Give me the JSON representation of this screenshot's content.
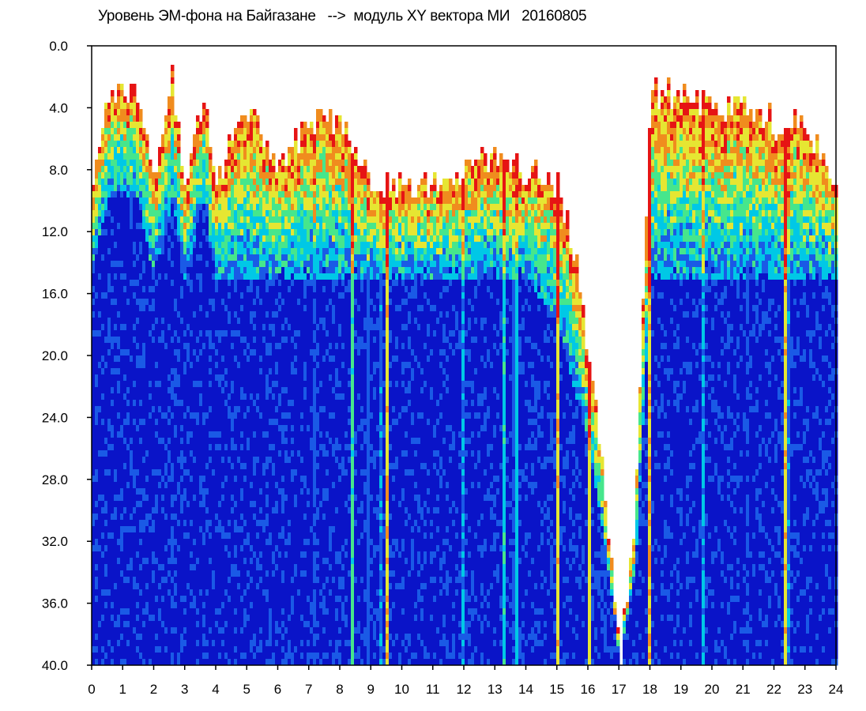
{
  "chart_data": {
    "type": "heatmap",
    "title": "Уровень ЭМ-фона на Байгазане   -->  модуль XY вектора МИ   20160805",
    "x_ticks": [
      "0",
      "1",
      "2",
      "3",
      "4",
      "5",
      "6",
      "7",
      "8",
      "9",
      "10",
      "11",
      "12",
      "13",
      "14",
      "15",
      "16",
      "17",
      "18",
      "19",
      "20",
      "21",
      "22",
      "23",
      "24"
    ],
    "y_ticks": [
      "0.0",
      "4.0",
      "8.0",
      "12.0",
      "16.0",
      "20.0",
      "24.0",
      "28.0",
      "32.0",
      "36.0",
      "40.0"
    ],
    "xlim": [
      0,
      24
    ],
    "ylim": [
      0,
      40
    ],
    "y_inverted": true,
    "grid": false,
    "colormap": [
      "#0a14c8",
      "#1a5ae6",
      "#00c8e6",
      "#46e68c",
      "#e6e632",
      "#f08c1e",
      "#e61414"
    ],
    "background_color": "#ffffff",
    "activity_profile": {
      "hours": [
        0,
        0.5,
        1.5,
        2.0,
        2.6,
        3.0,
        3.6,
        4.0,
        5.0,
        6.0,
        7.0,
        8.0,
        9.0,
        10.0,
        11.0,
        12.0,
        13.0,
        14.0,
        15.0,
        15.5,
        16.0,
        16.5,
        17.0,
        17.5,
        18.0,
        19.0,
        20.0,
        21.0,
        22.0,
        23.0,
        24.0
      ],
      "upper_edge": [
        9,
        3,
        3,
        9,
        2,
        9,
        3,
        9,
        4,
        8,
        5,
        5,
        9,
        9,
        9,
        8,
        7,
        8,
        9,
        13,
        20,
        28,
        40,
        30,
        3,
        3,
        4,
        4,
        5,
        5,
        9
      ],
      "floor_level": [
        15,
        10,
        10,
        15,
        10,
        15,
        10,
        15,
        15,
        15,
        15,
        15,
        15,
        15,
        15,
        15,
        15,
        15,
        18,
        22,
        26,
        32,
        40,
        34,
        15,
        15,
        15,
        15,
        15,
        15,
        15
      ]
    }
  }
}
